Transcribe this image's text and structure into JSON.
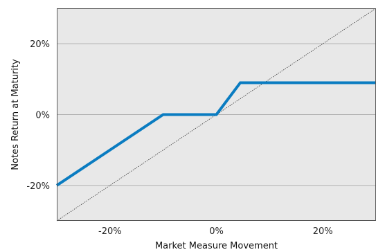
{
  "chart_data": {
    "type": "line",
    "xlabel": "Market Measure Movement",
    "ylabel": "Notes Return at Maturity",
    "xlim": [
      -30,
      30
    ],
    "ylim": [
      -30,
      30
    ],
    "x_ticks": [
      -20,
      0,
      20
    ],
    "y_ticks": [
      -20,
      0,
      20
    ],
    "x_tick_labels": [
      "-20%",
      "0%",
      "20%"
    ],
    "y_tick_labels": [
      "-20%",
      "0%",
      "20%"
    ],
    "grid": "horizontal",
    "legend": "none",
    "series": [
      {
        "style": "solid",
        "color": "#0a7cc1",
        "points": [
          [
            -30,
            -20
          ],
          [
            -10,
            0
          ],
          [
            0,
            0
          ],
          [
            4.5,
            9
          ],
          [
            30,
            9
          ]
        ]
      },
      {
        "style": "dotted",
        "color": "#333333",
        "points": [
          [
            -30,
            -30
          ],
          [
            30,
            30
          ]
        ]
      }
    ],
    "colors": {
      "plot_background": "#e8e8e8",
      "gridline": "#b0b0b0",
      "frame": "#555555"
    }
  }
}
